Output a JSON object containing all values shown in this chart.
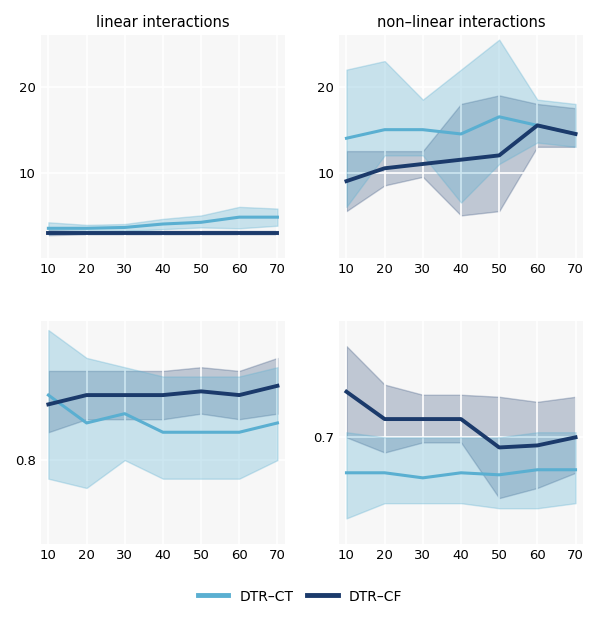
{
  "x": [
    10,
    20,
    30,
    40,
    50,
    60,
    70
  ],
  "color_ct": "#5AAFD1",
  "color_cf": "#1B3A6B",
  "alpha_ct": 0.3,
  "alpha_cf": 0.25,
  "title_left": "linear interactions",
  "title_right": "non–linear interactions",
  "legend_ct": "DTR–CT",
  "legend_cf": "DTR–CF",
  "background": "#f7f7f7",
  "grid_color": "#ffffff",
  "top_left": {
    "ct_mean": [
      3.5,
      3.5,
      3.6,
      4.0,
      4.2,
      4.8,
      4.8
    ],
    "ct_lo": [
      2.8,
      3.1,
      3.2,
      3.4,
      3.6,
      3.5,
      3.8
    ],
    "ct_hi": [
      4.2,
      3.9,
      4.0,
      4.6,
      5.0,
      6.0,
      5.8
    ],
    "cf_mean": [
      3.0,
      3.0,
      3.0,
      3.0,
      3.0,
      3.0,
      3.0
    ],
    "cf_lo": [
      2.7,
      2.8,
      2.8,
      2.8,
      2.8,
      2.8,
      2.8
    ],
    "cf_hi": [
      3.3,
      3.2,
      3.2,
      3.2,
      3.2,
      3.2,
      3.2
    ],
    "yticks": [
      10,
      20
    ],
    "ylim": [
      0,
      26
    ]
  },
  "top_right": {
    "ct_mean": [
      14.0,
      15.0,
      15.0,
      14.5,
      16.5,
      15.5,
      14.5
    ],
    "ct_lo": [
      6.0,
      12.0,
      12.0,
      6.5,
      11.0,
      13.5,
      13.0
    ],
    "ct_hi": [
      22.0,
      23.0,
      18.5,
      22.0,
      25.5,
      18.5,
      18.0
    ],
    "cf_mean": [
      9.0,
      10.5,
      11.0,
      11.5,
      12.0,
      15.5,
      14.5
    ],
    "cf_lo": [
      5.5,
      8.5,
      9.5,
      5.0,
      5.5,
      13.0,
      13.0
    ],
    "cf_hi": [
      12.5,
      12.5,
      12.5,
      18.0,
      19.0,
      18.0,
      17.5
    ],
    "yticks": [
      10,
      20
    ],
    "ylim": [
      0,
      26
    ]
  },
  "bot_left": {
    "ct_mean": [
      0.835,
      0.82,
      0.825,
      0.815,
      0.815,
      0.815,
      0.82
    ],
    "ct_lo": [
      0.79,
      0.785,
      0.8,
      0.79,
      0.79,
      0.79,
      0.8
    ],
    "ct_hi": [
      0.87,
      0.855,
      0.85,
      0.845,
      0.845,
      0.845,
      0.85
    ],
    "cf_mean": [
      0.83,
      0.835,
      0.835,
      0.835,
      0.837,
      0.835,
      0.84
    ],
    "cf_lo": [
      0.815,
      0.822,
      0.822,
      0.822,
      0.825,
      0.822,
      0.825
    ],
    "cf_hi": [
      0.848,
      0.848,
      0.848,
      0.848,
      0.85,
      0.848,
      0.855
    ],
    "yticks": [
      0.8
    ],
    "ylim": [
      0.755,
      0.875
    ]
  },
  "bot_right": {
    "ct_mean": [
      0.665,
      0.665,
      0.66,
      0.665,
      0.663,
      0.668,
      0.668
    ],
    "ct_lo": [
      0.62,
      0.635,
      0.635,
      0.635,
      0.63,
      0.63,
      0.635
    ],
    "ct_hi": [
      0.705,
      0.7,
      0.7,
      0.7,
      0.7,
      0.705,
      0.705
    ],
    "cf_mean": [
      0.745,
      0.718,
      0.718,
      0.718,
      0.69,
      0.692,
      0.7
    ],
    "cf_lo": [
      0.7,
      0.685,
      0.695,
      0.695,
      0.64,
      0.65,
      0.665
    ],
    "cf_hi": [
      0.79,
      0.752,
      0.742,
      0.742,
      0.74,
      0.735,
      0.74
    ],
    "yticks": [
      0.7
    ],
    "ylim": [
      0.595,
      0.815
    ]
  }
}
